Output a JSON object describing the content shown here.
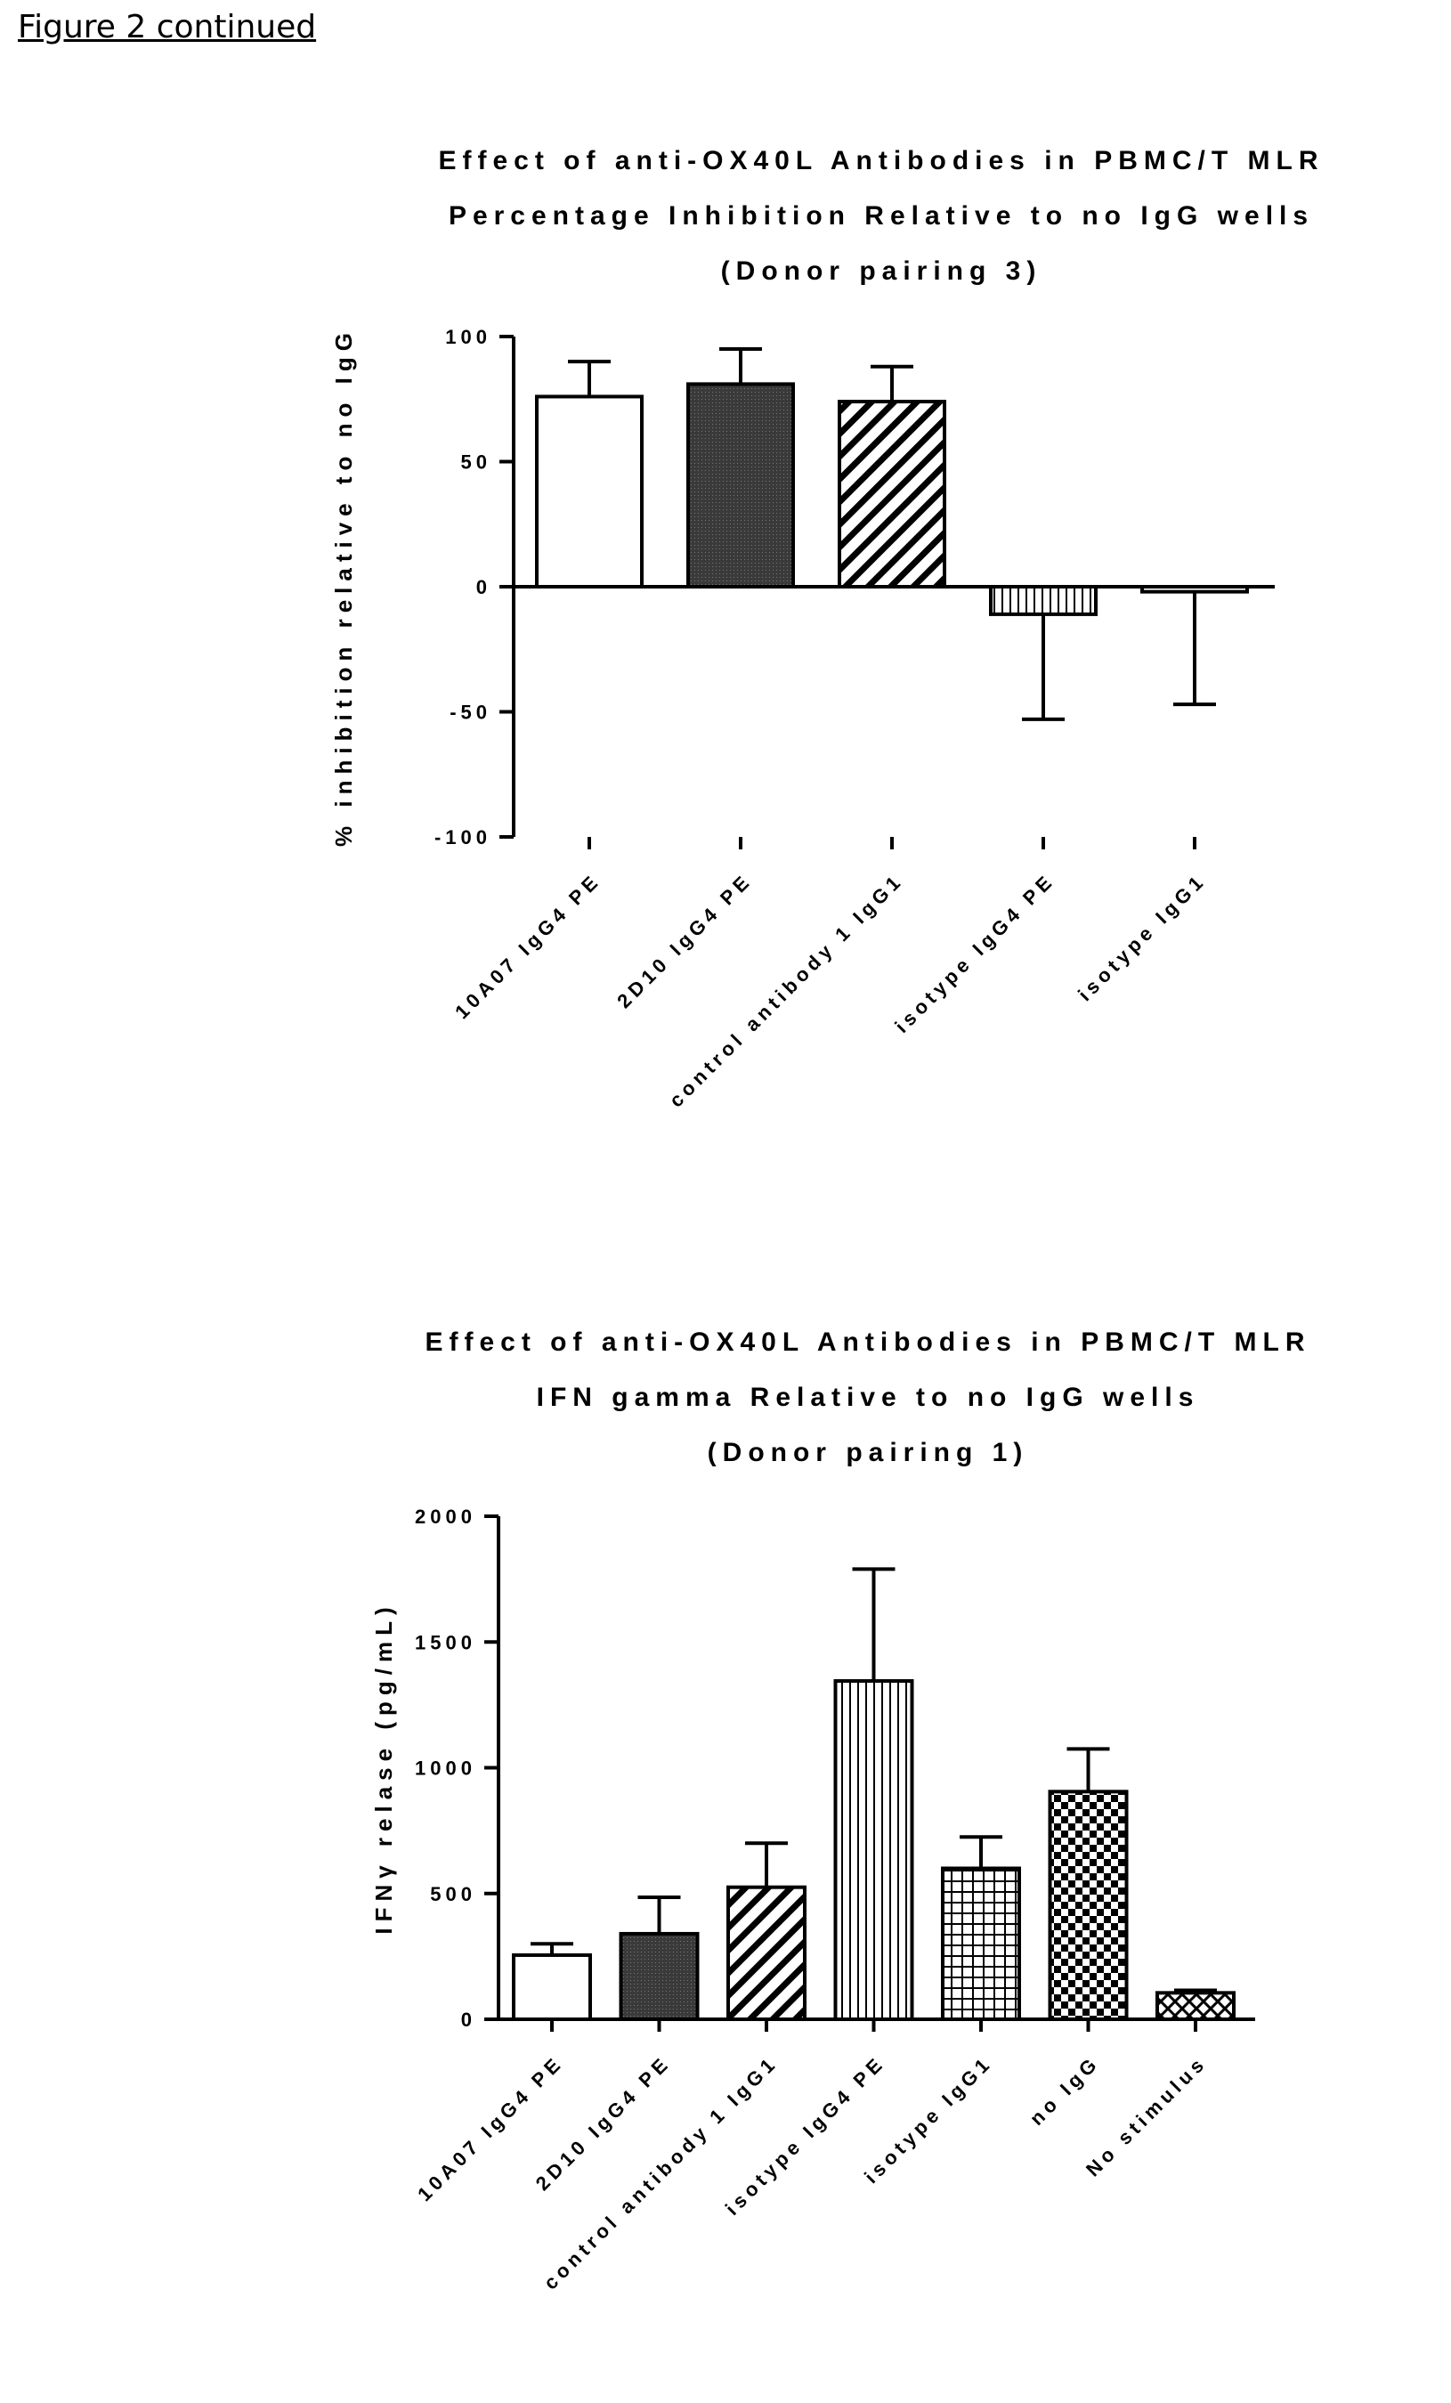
{
  "header": {
    "label": "Figure 2 continued"
  },
  "chart_data": [
    {
      "type": "bar",
      "title": [
        "Effect of anti-OX40L Antibodies in PBMC/T MLR",
        "Percentage Inhibition Relative to no IgG wells",
        "(Donor pairing 3)"
      ],
      "ylabel": "% inhibition relative to no IgG",
      "xlabel": "",
      "ylim": [
        -100,
        100
      ],
      "yticks": [
        100,
        50,
        0,
        -50,
        -100
      ],
      "categories": [
        "10A07 IgG4 PE",
        "2D10 IgG4 PE",
        "control antibody 1 IgG1",
        "isotype IgG4 PE",
        "isotype IgG1"
      ],
      "values": [
        76,
        81,
        74,
        -11,
        -2
      ],
      "errors": [
        14,
        14,
        14,
        42,
        45
      ],
      "patterns": [
        "white",
        "dark",
        "diag",
        "vert",
        "white"
      ]
    },
    {
      "type": "bar",
      "title": [
        "Effect of anti-OX40L Antibodies in PBMC/T MLR",
        "IFN gamma Relative to no IgG wells",
        "(Donor pairing 1)"
      ],
      "ylabel": "IFNγ relase (pg/mL)",
      "xlabel": "",
      "ylim": [
        0,
        2000
      ],
      "yticks": [
        2000,
        1500,
        1000,
        500,
        0
      ],
      "categories": [
        "10A07 IgG4 PE",
        "2D10 IgG4 PE",
        "control antibody 1 IgG1",
        "isotype IgG4 PE",
        "isotype IgG1",
        "no IgG",
        "No stimulus"
      ],
      "values": [
        255,
        340,
        525,
        1345,
        600,
        905,
        105
      ],
      "errors": [
        45,
        145,
        175,
        445,
        125,
        170,
        10
      ],
      "patterns": [
        "white",
        "dark",
        "diag",
        "vert",
        "grid",
        "check",
        "cross"
      ]
    }
  ]
}
